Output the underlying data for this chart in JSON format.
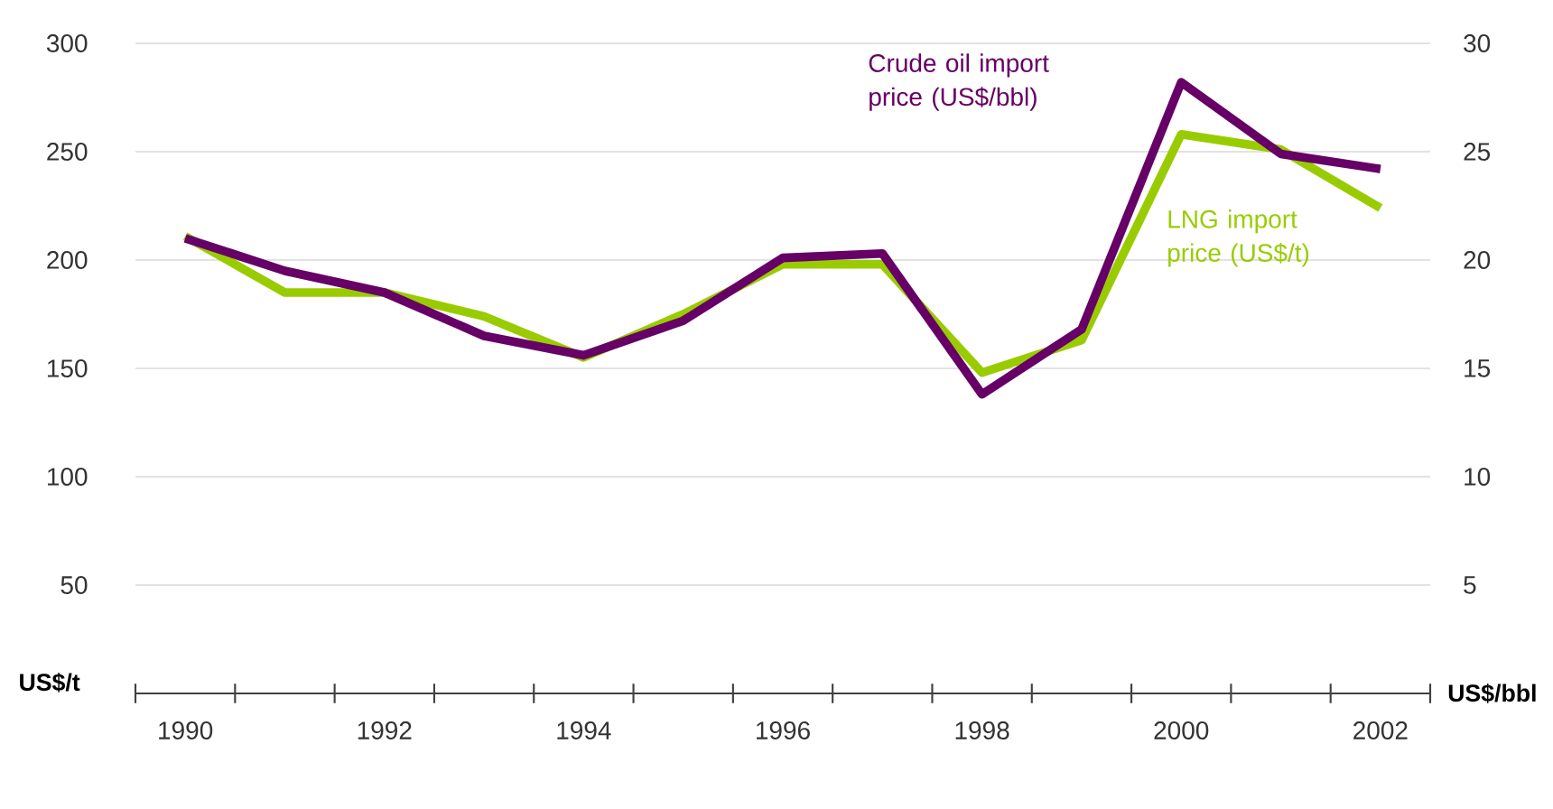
{
  "chart_data": {
    "type": "line",
    "categories": [
      "1990",
      null,
      "1992",
      null,
      "1994",
      null,
      "1996",
      null,
      "1998",
      null,
      "2000",
      null,
      "2002"
    ],
    "series": [
      {
        "name": "LNG import price (US$/t)",
        "color": "#99cc00",
        "values": [
          211,
          185,
          185,
          174,
          155,
          175,
          198,
          198,
          148,
          163,
          258,
          251,
          224
        ]
      },
      {
        "name": "Crude oil import price (US$/bbl)",
        "color": "#660066",
        "axis": "y2",
        "values": [
          21.0,
          19.5,
          18.5,
          16.5,
          15.6,
          17.2,
          20.1,
          20.3,
          13.8,
          16.8,
          28.2,
          24.9,
          24.2
        ]
      }
    ],
    "ylabel": "US$/t",
    "y2label": "US$/bbl",
    "ylim": [
      0,
      300
    ],
    "yticks": [
      50,
      100,
      150,
      200,
      250,
      300
    ],
    "y2lim": [
      0,
      30
    ],
    "y2ticks": [
      5,
      10,
      15,
      20,
      25,
      30
    ],
    "grid": "y"
  }
}
